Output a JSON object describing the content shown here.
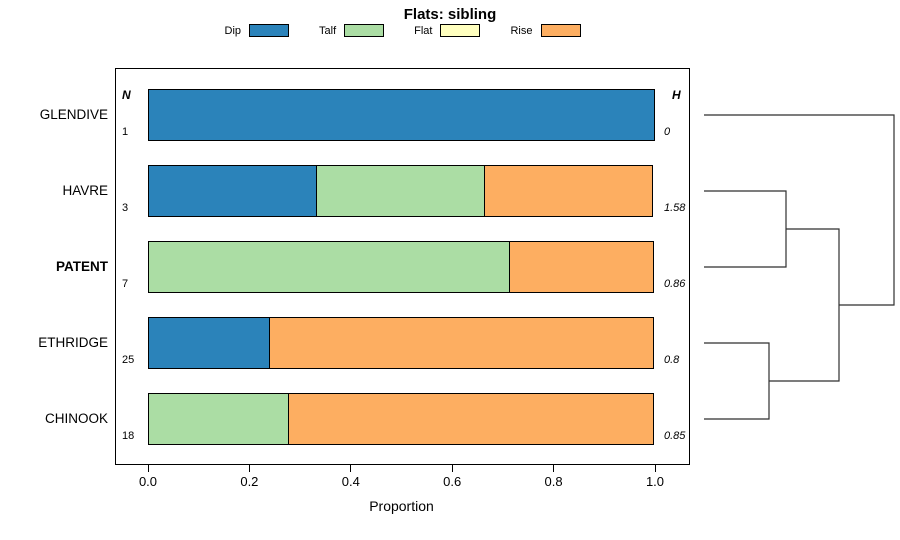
{
  "chart_data": {
    "type": "bar",
    "subtype": "horizontal-stacked-with-dendrogram",
    "title": "Flats: sibling",
    "xlabel": "Proportion",
    "x_ticks": [
      "0.0",
      "0.2",
      "0.4",
      "0.6",
      "0.8",
      "1.0"
    ],
    "xlim": [
      0,
      1
    ],
    "column_headers": {
      "n": "N",
      "h": "H"
    },
    "legend": [
      {
        "label": "Dip",
        "color": "#2b83ba"
      },
      {
        "label": "Talf",
        "color": "#abdda4"
      },
      {
        "label": "Flat",
        "color": "#ffffbf"
      },
      {
        "label": "Rise",
        "color": "#fdae61"
      }
    ],
    "rows": [
      {
        "name": "GLENDIVE",
        "bold": false,
        "n": "1",
        "h": "0",
        "segments": [
          {
            "category": "Dip",
            "value": 1.0
          }
        ]
      },
      {
        "name": "HAVRE",
        "bold": false,
        "n": "3",
        "h": "1.58",
        "segments": [
          {
            "category": "Dip",
            "value": 0.333
          },
          {
            "category": "Talf",
            "value": 0.334
          },
          {
            "category": "Rise",
            "value": 0.333
          }
        ]
      },
      {
        "name": "PATENT",
        "bold": true,
        "n": "7",
        "h": "0.86",
        "segments": [
          {
            "category": "Talf",
            "value": 0.714
          },
          {
            "category": "Rise",
            "value": 0.286
          }
        ]
      },
      {
        "name": "ETHRIDGE",
        "bold": false,
        "n": "25",
        "h": "0.8",
        "segments": [
          {
            "category": "Dip",
            "value": 0.24
          },
          {
            "category": "Rise",
            "value": 0.76
          }
        ]
      },
      {
        "name": "CHINOOK",
        "bold": false,
        "n": "18",
        "h": "0.85",
        "segments": [
          {
            "category": "Talf",
            "value": 0.278
          },
          {
            "category": "Rise",
            "value": 0.722
          }
        ]
      }
    ],
    "dendrogram": {
      "leaf_start_x": 704,
      "merges": [
        {
          "id": "m1",
          "children": [
            "HAVRE",
            "PATENT"
          ],
          "x": 786
        },
        {
          "id": "m2",
          "children": [
            "ETHRIDGE",
            "CHINOOK"
          ],
          "x": 769
        },
        {
          "id": "m3",
          "children": [
            "m1",
            "m2"
          ],
          "x": 839
        },
        {
          "id": "m4",
          "children": [
            "GLENDIVE",
            "m3"
          ],
          "x": 894
        }
      ],
      "line_color": "#2f2f2f"
    }
  }
}
